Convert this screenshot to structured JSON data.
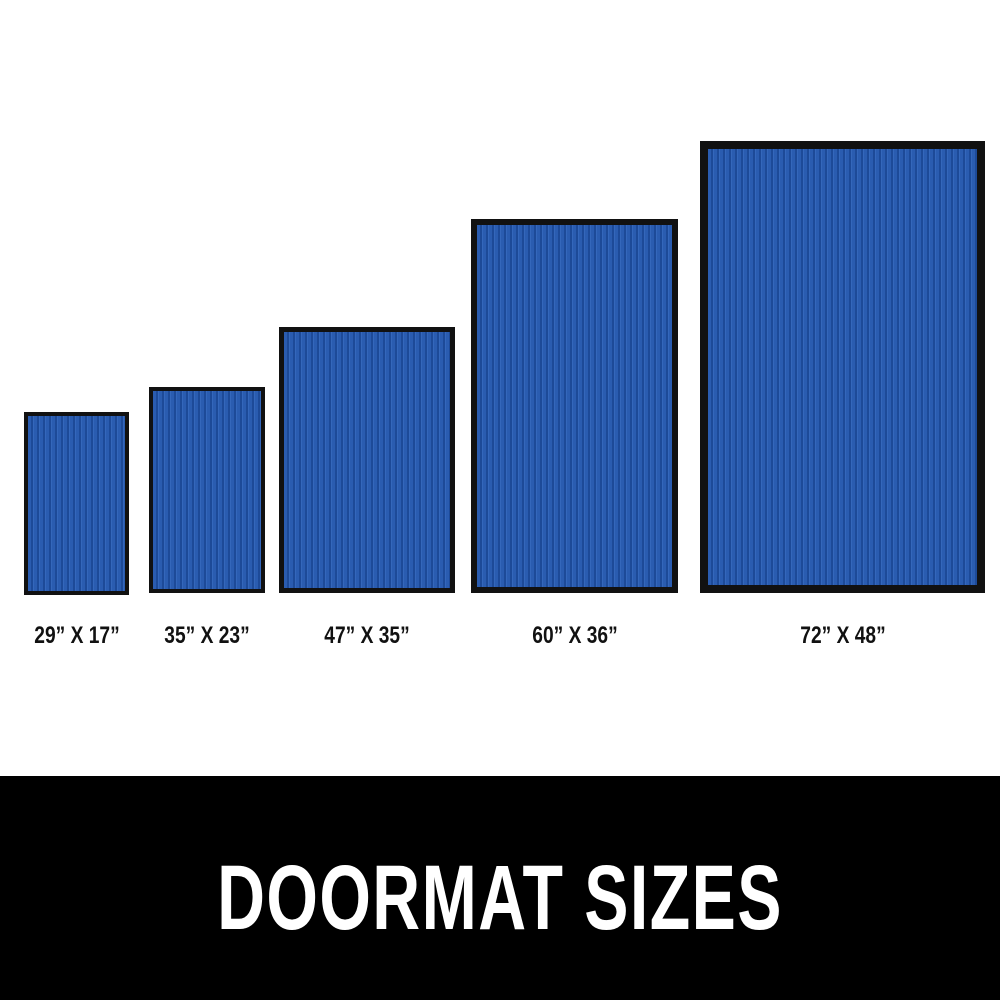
{
  "mats": [
    {
      "label": "29” X 17”"
    },
    {
      "label": "35” X 23”"
    },
    {
      "label": "47” X 35”"
    },
    {
      "label": "60” X 36”"
    },
    {
      "label": "72” X 48”"
    }
  ],
  "title": "DOORMAT SIZES",
  "colors": {
    "mat_blue": "#2a5cb0",
    "mat_border": "#111111",
    "band": "#000000"
  }
}
